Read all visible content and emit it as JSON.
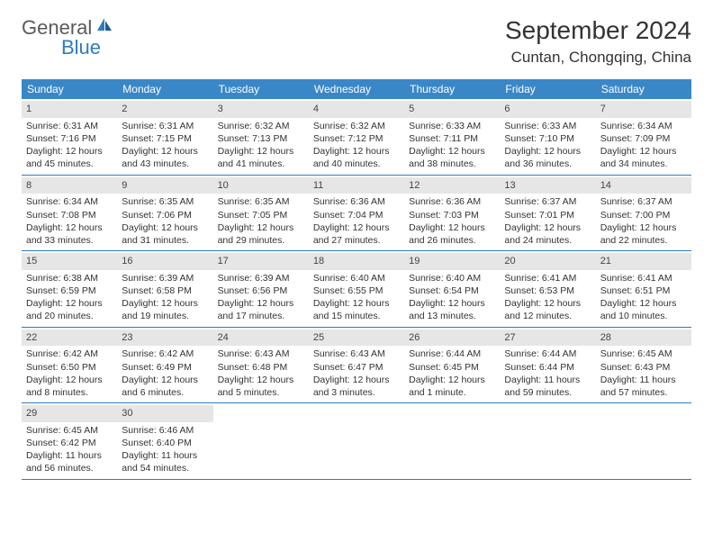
{
  "brand": {
    "text_general": "General",
    "text_blue": "Blue",
    "icon_color": "#2f7bbf"
  },
  "title": {
    "month": "September 2024",
    "location": "Cuntan, Chongqing, China"
  },
  "colors": {
    "header_bg": "#3a87c8",
    "header_text": "#ffffff",
    "row_border": "#2f7bbf",
    "day_num_bg": "#e6e6e6",
    "body_text": "#333333"
  },
  "day_names": [
    "Sunday",
    "Monday",
    "Tuesday",
    "Wednesday",
    "Thursday",
    "Friday",
    "Saturday"
  ],
  "weeks": [
    [
      {
        "n": "1",
        "sr": "Sunrise: 6:31 AM",
        "ss": "Sunset: 7:16 PM",
        "dl": "Daylight: 12 hours and 45 minutes."
      },
      {
        "n": "2",
        "sr": "Sunrise: 6:31 AM",
        "ss": "Sunset: 7:15 PM",
        "dl": "Daylight: 12 hours and 43 minutes."
      },
      {
        "n": "3",
        "sr": "Sunrise: 6:32 AM",
        "ss": "Sunset: 7:13 PM",
        "dl": "Daylight: 12 hours and 41 minutes."
      },
      {
        "n": "4",
        "sr": "Sunrise: 6:32 AM",
        "ss": "Sunset: 7:12 PM",
        "dl": "Daylight: 12 hours and 40 minutes."
      },
      {
        "n": "5",
        "sr": "Sunrise: 6:33 AM",
        "ss": "Sunset: 7:11 PM",
        "dl": "Daylight: 12 hours and 38 minutes."
      },
      {
        "n": "6",
        "sr": "Sunrise: 6:33 AM",
        "ss": "Sunset: 7:10 PM",
        "dl": "Daylight: 12 hours and 36 minutes."
      },
      {
        "n": "7",
        "sr": "Sunrise: 6:34 AM",
        "ss": "Sunset: 7:09 PM",
        "dl": "Daylight: 12 hours and 34 minutes."
      }
    ],
    [
      {
        "n": "8",
        "sr": "Sunrise: 6:34 AM",
        "ss": "Sunset: 7:08 PM",
        "dl": "Daylight: 12 hours and 33 minutes."
      },
      {
        "n": "9",
        "sr": "Sunrise: 6:35 AM",
        "ss": "Sunset: 7:06 PM",
        "dl": "Daylight: 12 hours and 31 minutes."
      },
      {
        "n": "10",
        "sr": "Sunrise: 6:35 AM",
        "ss": "Sunset: 7:05 PM",
        "dl": "Daylight: 12 hours and 29 minutes."
      },
      {
        "n": "11",
        "sr": "Sunrise: 6:36 AM",
        "ss": "Sunset: 7:04 PM",
        "dl": "Daylight: 12 hours and 27 minutes."
      },
      {
        "n": "12",
        "sr": "Sunrise: 6:36 AM",
        "ss": "Sunset: 7:03 PM",
        "dl": "Daylight: 12 hours and 26 minutes."
      },
      {
        "n": "13",
        "sr": "Sunrise: 6:37 AM",
        "ss": "Sunset: 7:01 PM",
        "dl": "Daylight: 12 hours and 24 minutes."
      },
      {
        "n": "14",
        "sr": "Sunrise: 6:37 AM",
        "ss": "Sunset: 7:00 PM",
        "dl": "Daylight: 12 hours and 22 minutes."
      }
    ],
    [
      {
        "n": "15",
        "sr": "Sunrise: 6:38 AM",
        "ss": "Sunset: 6:59 PM",
        "dl": "Daylight: 12 hours and 20 minutes."
      },
      {
        "n": "16",
        "sr": "Sunrise: 6:39 AM",
        "ss": "Sunset: 6:58 PM",
        "dl": "Daylight: 12 hours and 19 minutes."
      },
      {
        "n": "17",
        "sr": "Sunrise: 6:39 AM",
        "ss": "Sunset: 6:56 PM",
        "dl": "Daylight: 12 hours and 17 minutes."
      },
      {
        "n": "18",
        "sr": "Sunrise: 6:40 AM",
        "ss": "Sunset: 6:55 PM",
        "dl": "Daylight: 12 hours and 15 minutes."
      },
      {
        "n": "19",
        "sr": "Sunrise: 6:40 AM",
        "ss": "Sunset: 6:54 PM",
        "dl": "Daylight: 12 hours and 13 minutes."
      },
      {
        "n": "20",
        "sr": "Sunrise: 6:41 AM",
        "ss": "Sunset: 6:53 PM",
        "dl": "Daylight: 12 hours and 12 minutes."
      },
      {
        "n": "21",
        "sr": "Sunrise: 6:41 AM",
        "ss": "Sunset: 6:51 PM",
        "dl": "Daylight: 12 hours and 10 minutes."
      }
    ],
    [
      {
        "n": "22",
        "sr": "Sunrise: 6:42 AM",
        "ss": "Sunset: 6:50 PM",
        "dl": "Daylight: 12 hours and 8 minutes."
      },
      {
        "n": "23",
        "sr": "Sunrise: 6:42 AM",
        "ss": "Sunset: 6:49 PM",
        "dl": "Daylight: 12 hours and 6 minutes."
      },
      {
        "n": "24",
        "sr": "Sunrise: 6:43 AM",
        "ss": "Sunset: 6:48 PM",
        "dl": "Daylight: 12 hours and 5 minutes."
      },
      {
        "n": "25",
        "sr": "Sunrise: 6:43 AM",
        "ss": "Sunset: 6:47 PM",
        "dl": "Daylight: 12 hours and 3 minutes."
      },
      {
        "n": "26",
        "sr": "Sunrise: 6:44 AM",
        "ss": "Sunset: 6:45 PM",
        "dl": "Daylight: 12 hours and 1 minute."
      },
      {
        "n": "27",
        "sr": "Sunrise: 6:44 AM",
        "ss": "Sunset: 6:44 PM",
        "dl": "Daylight: 11 hours and 59 minutes."
      },
      {
        "n": "28",
        "sr": "Sunrise: 6:45 AM",
        "ss": "Sunset: 6:43 PM",
        "dl": "Daylight: 11 hours and 57 minutes."
      }
    ],
    [
      {
        "n": "29",
        "sr": "Sunrise: 6:45 AM",
        "ss": "Sunset: 6:42 PM",
        "dl": "Daylight: 11 hours and 56 minutes."
      },
      {
        "n": "30",
        "sr": "Sunrise: 6:46 AM",
        "ss": "Sunset: 6:40 PM",
        "dl": "Daylight: 11 hours and 54 minutes."
      },
      null,
      null,
      null,
      null,
      null
    ]
  ]
}
